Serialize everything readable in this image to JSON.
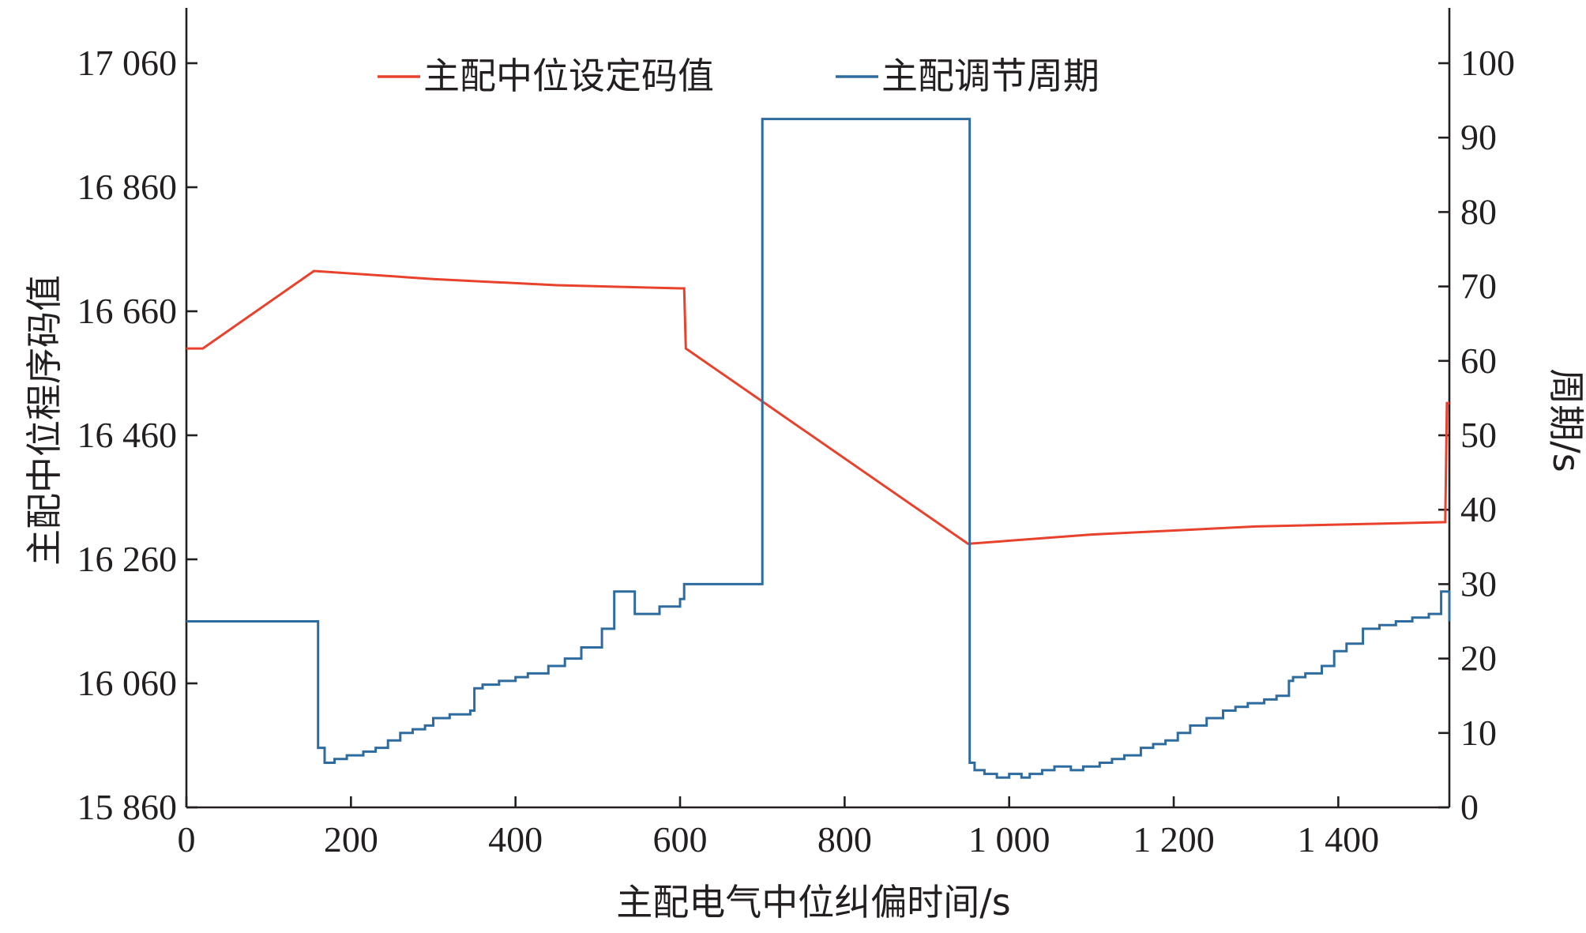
{
  "chart_data": {
    "type": "line",
    "title": "",
    "xlabel": "主配电气中位纠偏时间/s",
    "ylabel_left": "主配中位程序码值",
    "ylabel_right": "周期/s",
    "xlim": [
      0,
      1535
    ],
    "ylim_left": [
      15860,
      17060
    ],
    "ylim_right": [
      0,
      100
    ],
    "x_ticks": [
      0,
      200,
      400,
      600,
      800,
      1000,
      1200,
      1400
    ],
    "x_tick_labels": [
      "0",
      "200",
      "400",
      "600",
      "800",
      "1 000",
      "1 200",
      "1 400"
    ],
    "y_left_ticks": [
      15860,
      16060,
      16260,
      16460,
      16660,
      16860,
      17060
    ],
    "y_left_tick_labels": [
      "15 860",
      "16 060",
      "16 260",
      "16 460",
      "16 660",
      "16 860",
      "17 060"
    ],
    "y_right_ticks": [
      0,
      10,
      20,
      30,
      40,
      50,
      60,
      70,
      80,
      90,
      100
    ],
    "y_right_tick_labels": [
      "0",
      "10",
      "20",
      "30",
      "40",
      "50",
      "60",
      "70",
      "80",
      "90",
      "100"
    ],
    "grid": false,
    "legend_position": "top",
    "series": [
      {
        "name": "主配中位设定码值",
        "axis": "left",
        "color": "#e8412c",
        "step": false,
        "points": [
          [
            0,
            16600
          ],
          [
            20,
            16600
          ],
          [
            155,
            16725
          ],
          [
            300,
            16712
          ],
          [
            450,
            16702
          ],
          [
            600,
            16697
          ],
          [
            605,
            16697
          ],
          [
            607,
            16600
          ],
          [
            950,
            16285
          ],
          [
            1100,
            16300
          ],
          [
            1300,
            16313
          ],
          [
            1530,
            16320
          ],
          [
            1532,
            16512
          ],
          [
            1535,
            16512
          ]
        ]
      },
      {
        "name": "主配调节周期",
        "axis": "right",
        "color": "#2e6b9e",
        "step": true,
        "points": [
          [
            0,
            25
          ],
          [
            155,
            25
          ],
          [
            160,
            8
          ],
          [
            168,
            6
          ],
          [
            180,
            6.5
          ],
          [
            195,
            7
          ],
          [
            215,
            7.5
          ],
          [
            230,
            8
          ],
          [
            245,
            9
          ],
          [
            260,
            10
          ],
          [
            275,
            10.5
          ],
          [
            290,
            11
          ],
          [
            300,
            12
          ],
          [
            320,
            12.5
          ],
          [
            345,
            13
          ],
          [
            350,
            16
          ],
          [
            360,
            16.5
          ],
          [
            380,
            17
          ],
          [
            400,
            17.5
          ],
          [
            415,
            18
          ],
          [
            440,
            19
          ],
          [
            460,
            20
          ],
          [
            480,
            21.5
          ],
          [
            505,
            24
          ],
          [
            520,
            29
          ],
          [
            545,
            26
          ],
          [
            575,
            27
          ],
          [
            600,
            28
          ],
          [
            605,
            30
          ],
          [
            698,
            30
          ],
          [
            700,
            92.5
          ],
          [
            950,
            92.5
          ],
          [
            952,
            6
          ],
          [
            958,
            5
          ],
          [
            970,
            4.5
          ],
          [
            985,
            4
          ],
          [
            1000,
            4.5
          ],
          [
            1015,
            4
          ],
          [
            1025,
            4.5
          ],
          [
            1040,
            5
          ],
          [
            1055,
            5.5
          ],
          [
            1075,
            5
          ],
          [
            1090,
            5.5
          ],
          [
            1110,
            6
          ],
          [
            1125,
            6.5
          ],
          [
            1140,
            7
          ],
          [
            1160,
            8
          ],
          [
            1175,
            8.5
          ],
          [
            1190,
            9
          ],
          [
            1205,
            10
          ],
          [
            1220,
            11
          ],
          [
            1240,
            12
          ],
          [
            1260,
            13
          ],
          [
            1275,
            13.5
          ],
          [
            1290,
            14
          ],
          [
            1310,
            14.5
          ],
          [
            1325,
            15
          ],
          [
            1340,
            17
          ],
          [
            1345,
            17.5
          ],
          [
            1360,
            18
          ],
          [
            1380,
            19
          ],
          [
            1395,
            21
          ],
          [
            1410,
            22
          ],
          [
            1430,
            24
          ],
          [
            1450,
            24.5
          ],
          [
            1470,
            25
          ],
          [
            1490,
            25.5
          ],
          [
            1510,
            26
          ],
          [
            1525,
            29
          ],
          [
            1530,
            29
          ],
          [
            1535,
            25
          ],
          [
            1535,
            25
          ]
        ]
      }
    ]
  }
}
